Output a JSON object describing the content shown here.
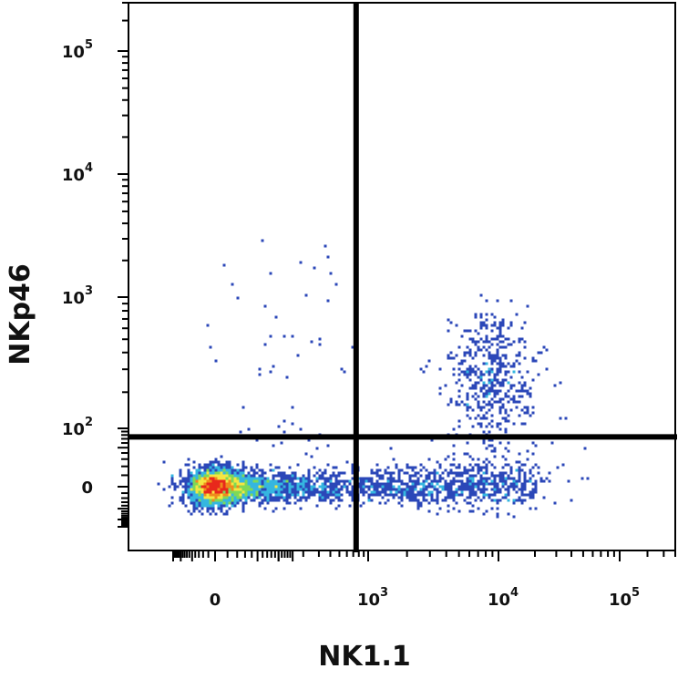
{
  "chart_data": {
    "type": "scatter",
    "subtype": "flow-cytometry-density-dot-plot",
    "xlabel": "NK1.1",
    "ylabel": "NKp46",
    "x_scale": "biexponential",
    "y_scale": "biexponential",
    "x_ticks": [
      {
        "value": 0,
        "base": "0",
        "exp": ""
      },
      {
        "value": 1000,
        "base": "10",
        "exp": "3"
      },
      {
        "value": 10000,
        "base": "10",
        "exp": "4"
      },
      {
        "value": 100000,
        "base": "10",
        "exp": "5"
      }
    ],
    "y_ticks": [
      {
        "value": 0,
        "base": "0",
        "exp": ""
      },
      {
        "value": 100,
        "base": "10",
        "exp": "2"
      },
      {
        "value": 1000,
        "base": "10",
        "exp": "3"
      },
      {
        "value": 10000,
        "base": "10",
        "exp": "4"
      },
      {
        "value": 100000,
        "base": "10",
        "exp": "5"
      }
    ],
    "gates": {
      "x_threshold": 750,
      "y_threshold": 75
    },
    "colors": {
      "density_low": "#2b47b8",
      "density_mid_low": "#35b6e0",
      "density_mid": "#7ed957",
      "density_mid_high": "#f5e642",
      "density_high": "#f08a1c",
      "density_peak": "#e8281c",
      "gate_line": "#000000"
    },
    "populations": [
      {
        "x": 0,
        "y": 0,
        "share": 0.62
      },
      {
        "x": 250,
        "y": 0,
        "share": 0.2
      },
      {
        "x": 3000,
        "y": 0,
        "share": 0.1
      },
      {
        "x": 9000,
        "y": 250,
        "share": 0.08
      }
    ]
  }
}
